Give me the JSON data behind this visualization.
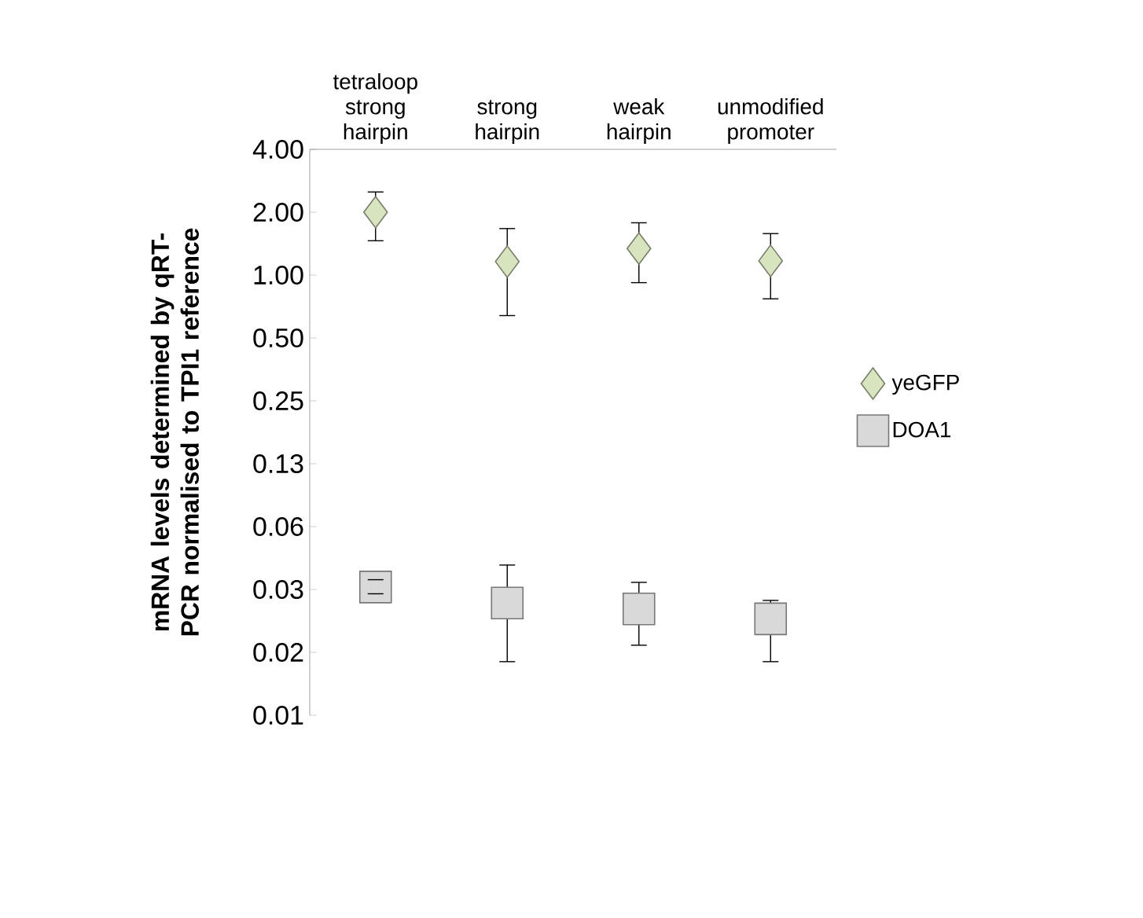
{
  "chart_data": {
    "type": "scatter",
    "ylabel": "mRNA levels determined by qRT-PCR normalised to TPI1 reference",
    "categories": [
      "tetraloop strong hairpin",
      "strong hairpin",
      "weak hairpin",
      "unmodified promoter"
    ],
    "log": true,
    "ylim": [
      0.0078125,
      4
    ],
    "yticks": [
      {
        "value": 0.0078125,
        "label": "0.01"
      },
      {
        "value": 0.015625,
        "label": "0.02"
      },
      {
        "value": 0.03125,
        "label": "0.03"
      },
      {
        "value": 0.0625,
        "label": "0.06"
      },
      {
        "value": 0.125,
        "label": "0.13"
      },
      {
        "value": 0.25,
        "label": "0.25"
      },
      {
        "value": 0.5,
        "label": "0.50"
      },
      {
        "value": 1,
        "label": "1.00"
      },
      {
        "value": 2,
        "label": "2.00"
      },
      {
        "value": 4,
        "label": "4.00"
      }
    ],
    "legend": "right",
    "series": [
      {
        "name": "yeGFP",
        "color": "#d7e4bd",
        "marker": "diamond",
        "values": [
          2.0,
          1.16,
          1.34,
          1.17
        ],
        "errors": [
          [
            1.46,
            2.5
          ],
          [
            0.64,
            1.67
          ],
          [
            0.92,
            1.78
          ],
          [
            0.77,
            1.58
          ]
        ]
      },
      {
        "name": "DOA1",
        "color": "#d9d9d9",
        "marker": "square",
        "values": [
          0.0321,
          0.0269,
          0.0252,
          0.0226
        ],
        "errors": [
          [
            0.0298,
            0.0348
          ],
          [
            0.0141,
            0.0409
          ],
          [
            0.0169,
            0.0338
          ],
          [
            0.0141,
            0.0277
          ]
        ]
      }
    ]
  }
}
